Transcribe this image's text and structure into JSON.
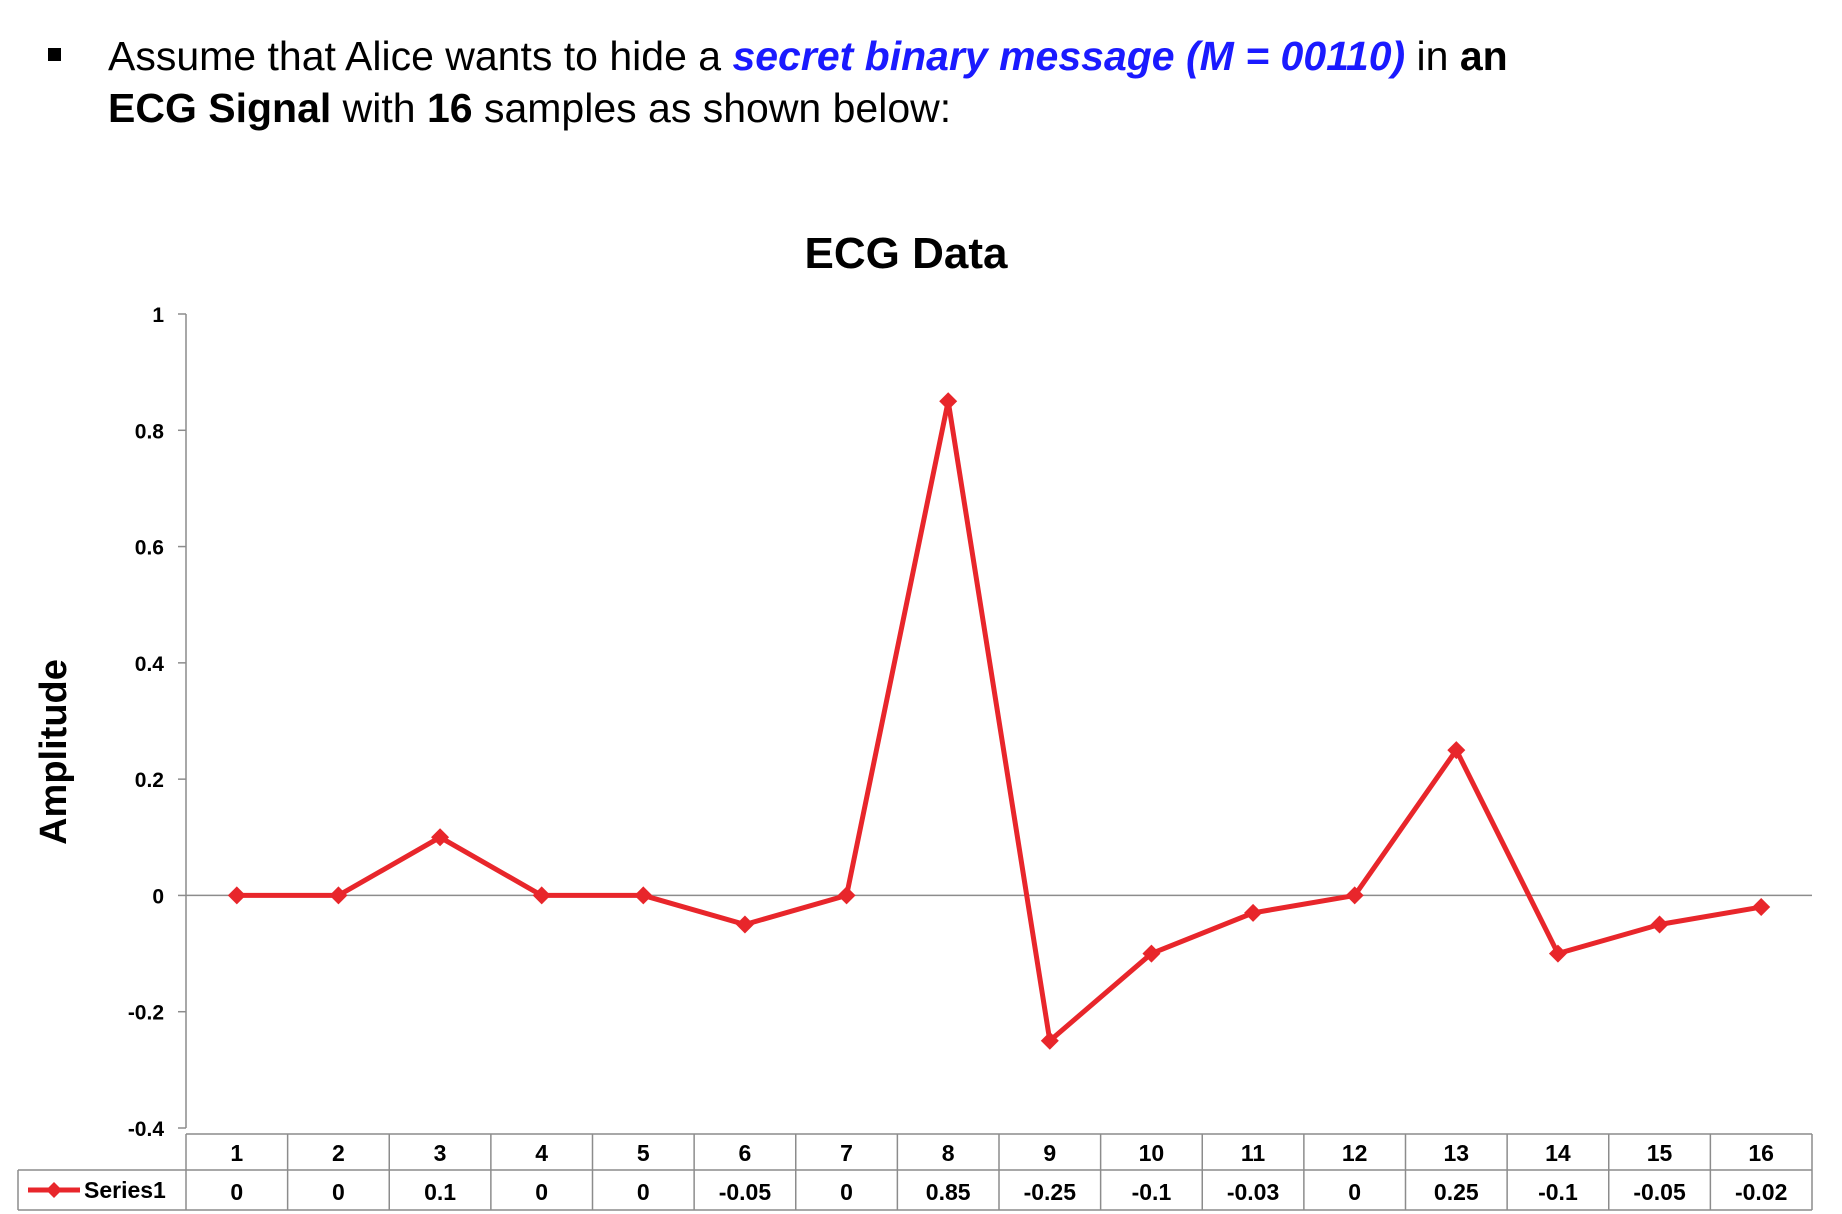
{
  "intro": {
    "part1": "Assume that Alice wants to hide a ",
    "highlight": "secret binary message (M = 00110)",
    "part2": " in ",
    "bold1": "an",
    "bold2": "ECG Signal",
    "part3": " with ",
    "bold3": "16",
    "part4": " samples as shown below:"
  },
  "colors": {
    "series": "#e8262b",
    "highlight": "#1a1aff"
  },
  "chart_data": {
    "type": "line",
    "title": "ECG Data",
    "xlabel": "",
    "ylabel": "Amplitude",
    "categories": [
      "1",
      "2",
      "3",
      "4",
      "5",
      "6",
      "7",
      "8",
      "9",
      "10",
      "11",
      "12",
      "13",
      "14",
      "15",
      "16"
    ],
    "series": [
      {
        "name": "Series1",
        "values": [
          0,
          0,
          0.1,
          0,
          0,
          -0.05,
          0,
          0.85,
          -0.25,
          -0.1,
          -0.03,
          0,
          0.25,
          -0.1,
          -0.05,
          -0.02
        ],
        "labels": [
          "0",
          "0",
          "0.1",
          "0",
          "0",
          "-0.05",
          "0",
          "0.85",
          "-0.25",
          "-0.1",
          "-0.03",
          "0",
          "0.25",
          "-0.1",
          "-0.05",
          "-0.02"
        ]
      }
    ],
    "ylim": [
      -0.4,
      1
    ],
    "yticks": [
      "-0.4",
      "-0.2",
      "0",
      "0.2",
      "0.4",
      "0.6",
      "0.8",
      "1"
    ],
    "yticks_values": [
      -0.4,
      -0.2,
      0,
      0.2,
      0.4,
      0.6,
      0.8,
      1
    ],
    "grid": false,
    "legend": "data-table",
    "marker": "diamond"
  }
}
